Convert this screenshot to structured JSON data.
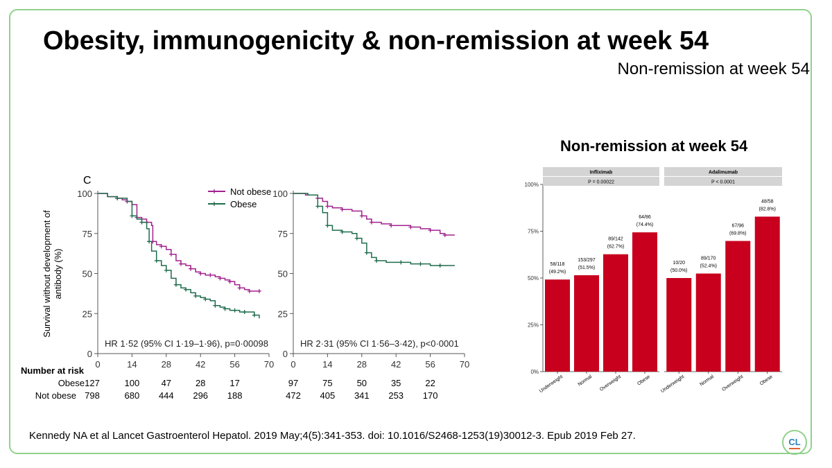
{
  "slide": {
    "title": "Obesity, immunogenicity & non-remission at week 54",
    "subtitle": "Non-remission at week 54",
    "bar_heading": "Non-remission at week 54",
    "citation": "Kennedy NA et al Lancet Gastroenterol Hepatol. 2019 May;4(5):341-353. doi: 10.1016/S2468-1253(19)30012-3. Epub 2019 Feb 27.",
    "logo_text": "CL"
  },
  "colors": {
    "not_obese": "#a0218e",
    "obese": "#1f6b4c",
    "bar": "#c8001e",
    "facet_header": "#d4d4d4",
    "frame": "#8fd18b"
  },
  "chart_data": [
    {
      "type": "line",
      "title": "Survival without development of antibody",
      "panel_label": "C",
      "ylabel": "Survival without development of antibody (%)",
      "ylabel_lines": [
        "Survival without development of",
        "antibody (%)"
      ],
      "xlim": [
        0,
        70
      ],
      "ylim": [
        0,
        100
      ],
      "x_ticks": [
        0,
        14,
        28,
        42,
        56,
        70
      ],
      "y_ticks": [
        0,
        25,
        50,
        75,
        100
      ],
      "legend": [
        "Not obese",
        "Obese"
      ],
      "legend_position": "top-right",
      "panels": [
        {
          "name": "Infliximab",
          "annotation": "HR 1·52 (95% CI 1·19–1·96), p=0·00098",
          "series": [
            {
              "name": "Not obese",
              "x": [
                0,
                4,
                8,
                10,
                12,
                14,
                16,
                18,
                20,
                22,
                22.5,
                24,
                26,
                28,
                30,
                32,
                34,
                36,
                38,
                40,
                42,
                44,
                46,
                48,
                50,
                52,
                54,
                56,
                58,
                60,
                62,
                64,
                66
              ],
              "y": [
                100,
                98,
                97,
                96,
                95,
                93,
                85,
                84,
                82,
                80,
                70,
                68,
                67,
                65,
                62,
                58,
                56,
                55,
                53,
                51,
                50,
                49,
                49,
                48,
                47,
                46,
                45,
                43,
                41,
                40,
                39,
                39,
                39
              ]
            },
            {
              "name": "Obese",
              "x": [
                0,
                4,
                8,
                12,
                14,
                16,
                18,
                20,
                21,
                22,
                24,
                26,
                28,
                30,
                32,
                34,
                36,
                38,
                40,
                42,
                44,
                46,
                48,
                50,
                52,
                54,
                56,
                58,
                60,
                62,
                64,
                66
              ],
              "y": [
                100,
                98,
                97,
                95,
                86,
                84,
                82,
                78,
                70,
                64,
                58,
                55,
                52,
                47,
                43,
                41,
                40,
                38,
                36,
                35,
                34,
                33,
                30,
                29,
                28,
                27,
                27,
                26,
                26,
                26,
                24,
                22
              ]
            }
          ],
          "risk": {
            "obese": [
              "127",
              "100",
              "47",
              "28",
              "17"
            ],
            "not_obese": [
              "798",
              "680",
              "444",
              "296",
              "188"
            ]
          }
        },
        {
          "name": "Adalimumab",
          "annotation": "HR 2·31 (95% CI 1·56–3·42), p<0·0001",
          "series": [
            {
              "name": "Not obese",
              "x": [
                0,
                5,
                10,
                12,
                14,
                16,
                20,
                24,
                28,
                30,
                32,
                36,
                40,
                44,
                48,
                52,
                56,
                60,
                62,
                66
              ],
              "y": [
                100,
                99,
                97,
                95,
                92,
                91,
                90,
                89,
                86,
                84,
                82,
                81,
                80,
                80,
                79,
                78,
                77,
                75,
                74,
                74
              ]
            },
            {
              "name": "Obese",
              "x": [
                0,
                6,
                10,
                12,
                14,
                16,
                20,
                24,
                26,
                28,
                30,
                32,
                34,
                38,
                44,
                48,
                52,
                56,
                60,
                66
              ],
              "y": [
                100,
                99,
                92,
                88,
                80,
                77,
                76,
                75,
                72,
                69,
                63,
                60,
                58,
                57,
                57,
                56,
                56,
                55,
                55,
                55
              ]
            }
          ],
          "risk": {
            "obese": [
              "97",
              "75",
              "50",
              "35",
              "22"
            ],
            "not_obese": [
              "472",
              "405",
              "341",
              "253",
              "170"
            ]
          }
        }
      ],
      "risk_table": {
        "title": "Number at risk",
        "row_labels": [
          "Obese",
          "Not obese"
        ]
      }
    },
    {
      "type": "bar",
      "title": "Non-remission at week 54",
      "ylim": [
        0,
        1
      ],
      "y_ticks": [
        "0%",
        "25%",
        "50%",
        "75%",
        "100%"
      ],
      "categories": [
        "Underweight",
        "Normal",
        "Overweight",
        "Obese"
      ],
      "facets": [
        {
          "name": "Infliximab",
          "p": "P = 0.00022",
          "values": [
            0.492,
            0.515,
            0.627,
            0.744
          ],
          "labels": [
            [
              "58/118",
              "(49.2%)"
            ],
            [
              "153/297",
              "(51.5%)"
            ],
            [
              "89/142",
              "(62.7%)"
            ],
            [
              "64/86",
              "(74.4%)"
            ]
          ]
        },
        {
          "name": "Adalimumab",
          "p": "P < 0.0001",
          "values": [
            0.5,
            0.524,
            0.698,
            0.828
          ],
          "labels": [
            [
              "10/20",
              "(50.0%)"
            ],
            [
              "89/170",
              "(52.4%)"
            ],
            [
              "67/96",
              "(69.8%)"
            ],
            [
              "48/58",
              "(82.8%)"
            ]
          ]
        }
      ]
    }
  ]
}
